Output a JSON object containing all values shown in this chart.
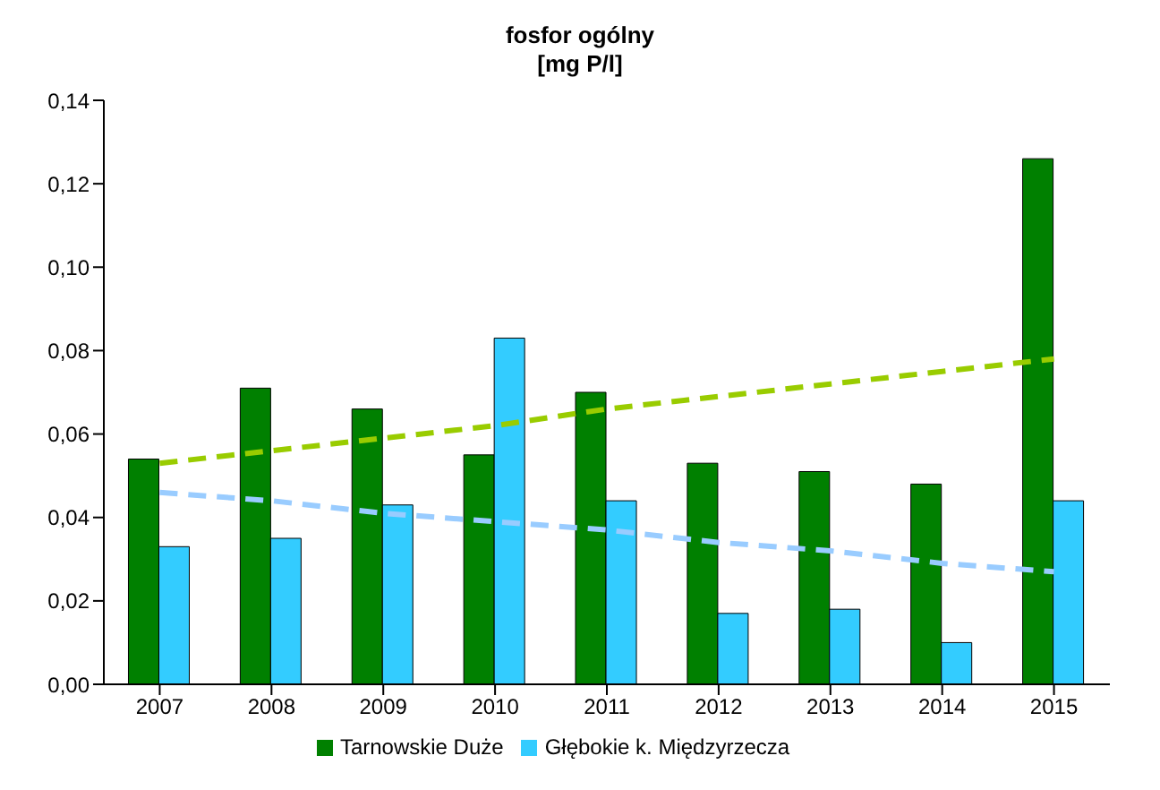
{
  "chart_data": {
    "type": "bar",
    "title": "fosfor ogólny",
    "subtitle": "[mg P/l]",
    "categories": [
      "2007",
      "2008",
      "2009",
      "2010",
      "2011",
      "2012",
      "2013",
      "2014",
      "2015"
    ],
    "series": [
      {
        "name": "Tarnowskie Duże",
        "color": "#008000",
        "values": [
          0.054,
          0.071,
          0.066,
          0.055,
          0.07,
          0.053,
          0.051,
          0.048,
          0.126
        ]
      },
      {
        "name": "Głębokie k. Międzyrzecza",
        "color": "#33ccff",
        "values": [
          0.033,
          0.035,
          0.043,
          0.083,
          0.044,
          0.017,
          0.018,
          0.01,
          0.044
        ]
      },
      {
        "type": "line",
        "color": "#99cc00",
        "line_style": "dashed",
        "values": [
          0.053,
          0.056,
          0.059,
          0.062,
          0.066,
          0.069,
          0.072,
          0.075,
          0.078
        ]
      },
      {
        "type": "line",
        "color": "#99ccff",
        "line_style": "dashed",
        "values": [
          0.046,
          0.044,
          0.041,
          0.039,
          0.037,
          0.034,
          0.032,
          0.029,
          0.027
        ]
      }
    ],
    "ylim": [
      0,
      0.14
    ],
    "yticks": [
      {
        "value": 0,
        "label": "0,00"
      },
      {
        "value": 0.02,
        "label": "0,02"
      },
      {
        "value": 0.04,
        "label": "0,04"
      },
      {
        "value": 0.06,
        "label": "0,06"
      },
      {
        "value": 0.08,
        "label": "0,08"
      },
      {
        "value": 0.1,
        "label": "0,10"
      },
      {
        "value": 0.12,
        "label": "0,12"
      },
      {
        "value": 0.14,
        "label": "0,14"
      }
    ],
    "grid": false,
    "legend": "bottom",
    "marker": "none"
  }
}
